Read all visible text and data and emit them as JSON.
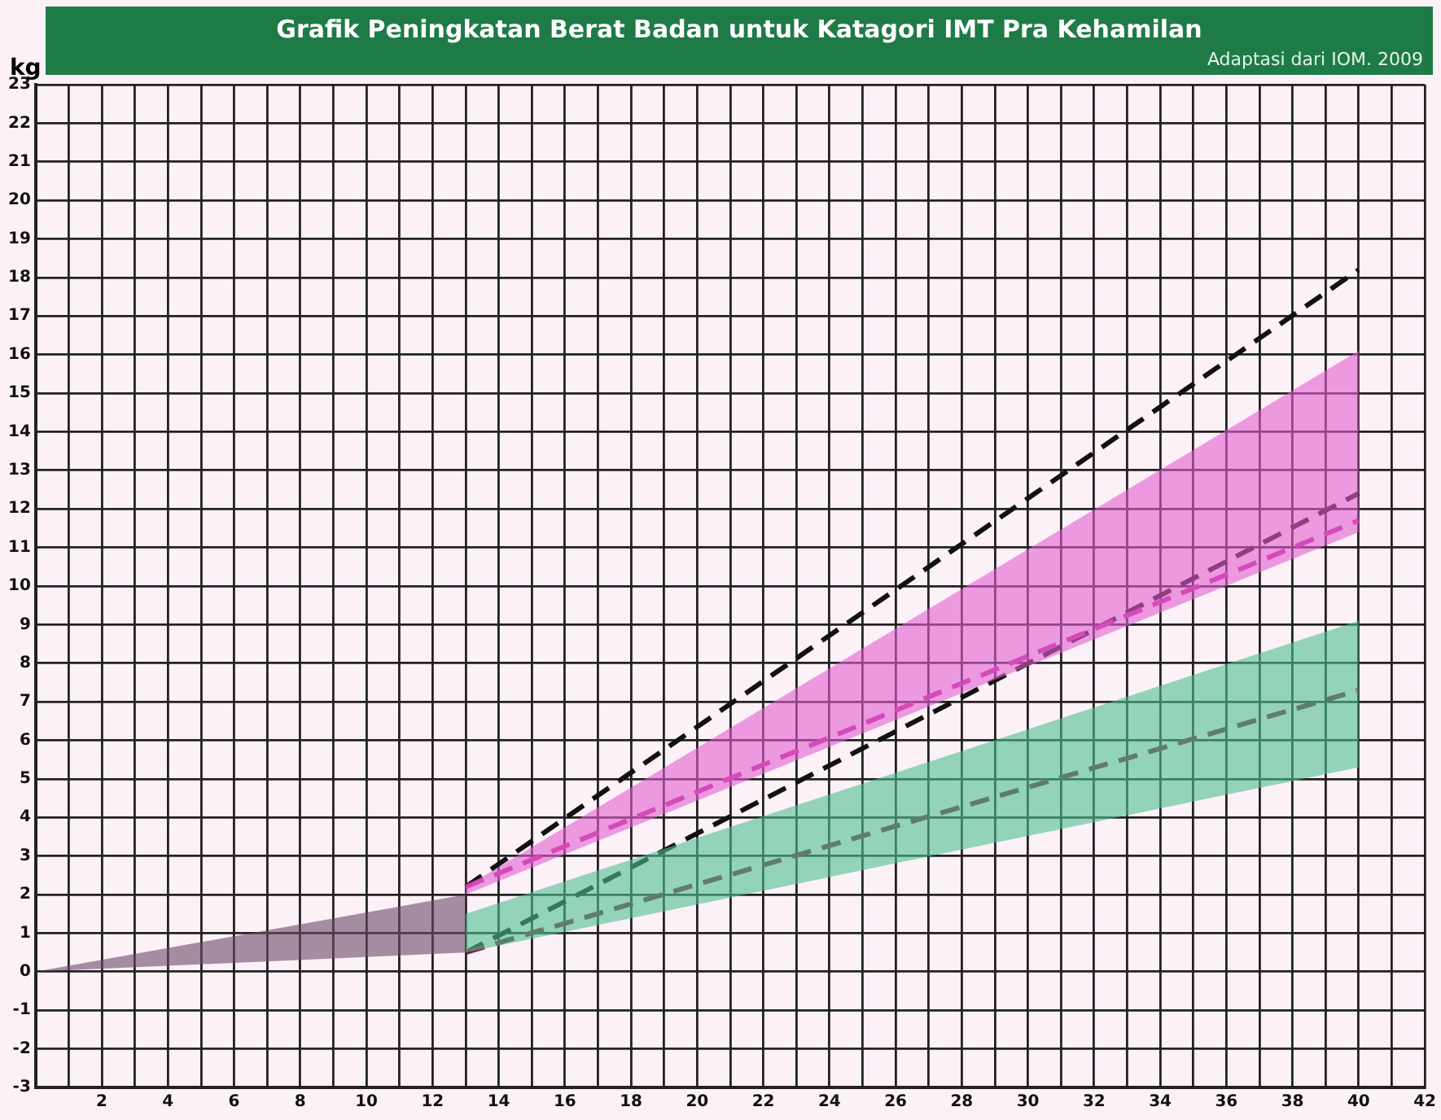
{
  "chart_data": {
    "type": "line",
    "title": "Grafik Peningkatan Berat Badan untuk Katagori IMT Pra Kehamilan",
    "annotations": [
      "Adaptasi dari IOM. 2009"
    ],
    "ylabel": "kg",
    "xlim": [
      0,
      42
    ],
    "ylim": [
      -3,
      23
    ],
    "xticks": [
      {
        "value": 0,
        "label": null
      },
      {
        "value": 1,
        "label": null
      },
      2,
      {
        "value": 3,
        "label": null
      },
      4,
      {
        "value": 5,
        "label": null
      },
      6,
      {
        "value": 7,
        "label": null
      },
      8,
      {
        "value": 9,
        "label": null
      },
      10,
      {
        "value": 11,
        "label": null
      },
      12,
      {
        "value": 13,
        "label": null
      },
      14,
      {
        "value": 15,
        "label": null
      },
      16,
      {
        "value": 17,
        "label": null
      },
      18,
      {
        "value": 19,
        "label": null
      },
      20,
      {
        "value": 21,
        "label": null
      },
      22,
      {
        "value": 23,
        "label": null
      },
      24,
      {
        "value": 25,
        "label": null
      },
      26,
      {
        "value": 27,
        "label": null
      },
      28,
      {
        "value": 29,
        "label": null
      },
      30,
      {
        "value": 31,
        "label": null
      },
      32,
      {
        "value": 33,
        "label": null
      },
      34,
      {
        "value": 35,
        "label": null
      },
      36,
      {
        "value": 37,
        "label": null
      },
      38,
      {
        "value": 39,
        "label": null
      },
      40,
      {
        "value": 41,
        "label": null
      },
      42
    ],
    "yticks": [
      -3,
      -2,
      -1,
      0,
      1,
      2,
      3,
      4,
      5,
      6,
      7,
      8,
      9,
      10,
      11,
      12,
      13,
      14,
      15,
      16,
      17,
      18,
      19,
      20,
      21,
      22,
      23
    ],
    "grid": true,
    "legend": false,
    "marker": "none",
    "series": [
      {
        "color": "#e25fd0",
        "x": [
          13,
          40
        ],
        "values": [
          null,
          null
        ],
        "lower": [
          2,
          11.4
        ],
        "upper": [
          2.2,
          16.1
        ]
      },
      {
        "color": "#4fbf90",
        "x": [
          13,
          40
        ],
        "values": [
          null,
          null
        ],
        "lower": [
          0.5,
          5.3
        ],
        "upper": [
          1.5,
          9.1
        ]
      },
      {
        "color": "#6e4a66",
        "x": [
          0,
          13
        ],
        "values": [
          null,
          null
        ],
        "lower": [
          0,
          0.5
        ],
        "upper": [
          0,
          2
        ]
      },
      {
        "color": "#c02c9a",
        "x": [
          13,
          40
        ],
        "values": [
          2.2,
          11.7
        ],
        "line_style": "dashed"
      },
      {
        "color": "#7a1838",
        "x": [
          13,
          40
        ],
        "values": [
          0.5,
          7.3
        ],
        "line_style": "dashed"
      },
      {
        "color": "#111111",
        "x": [
          13,
          40
        ],
        "values": [
          2.2,
          18.2
        ],
        "line_style": "dashed"
      },
      {
        "color": "#111111",
        "x": [
          13,
          40
        ],
        "values": [
          0.5,
          12.4
        ],
        "line_style": "dashed"
      }
    ]
  }
}
